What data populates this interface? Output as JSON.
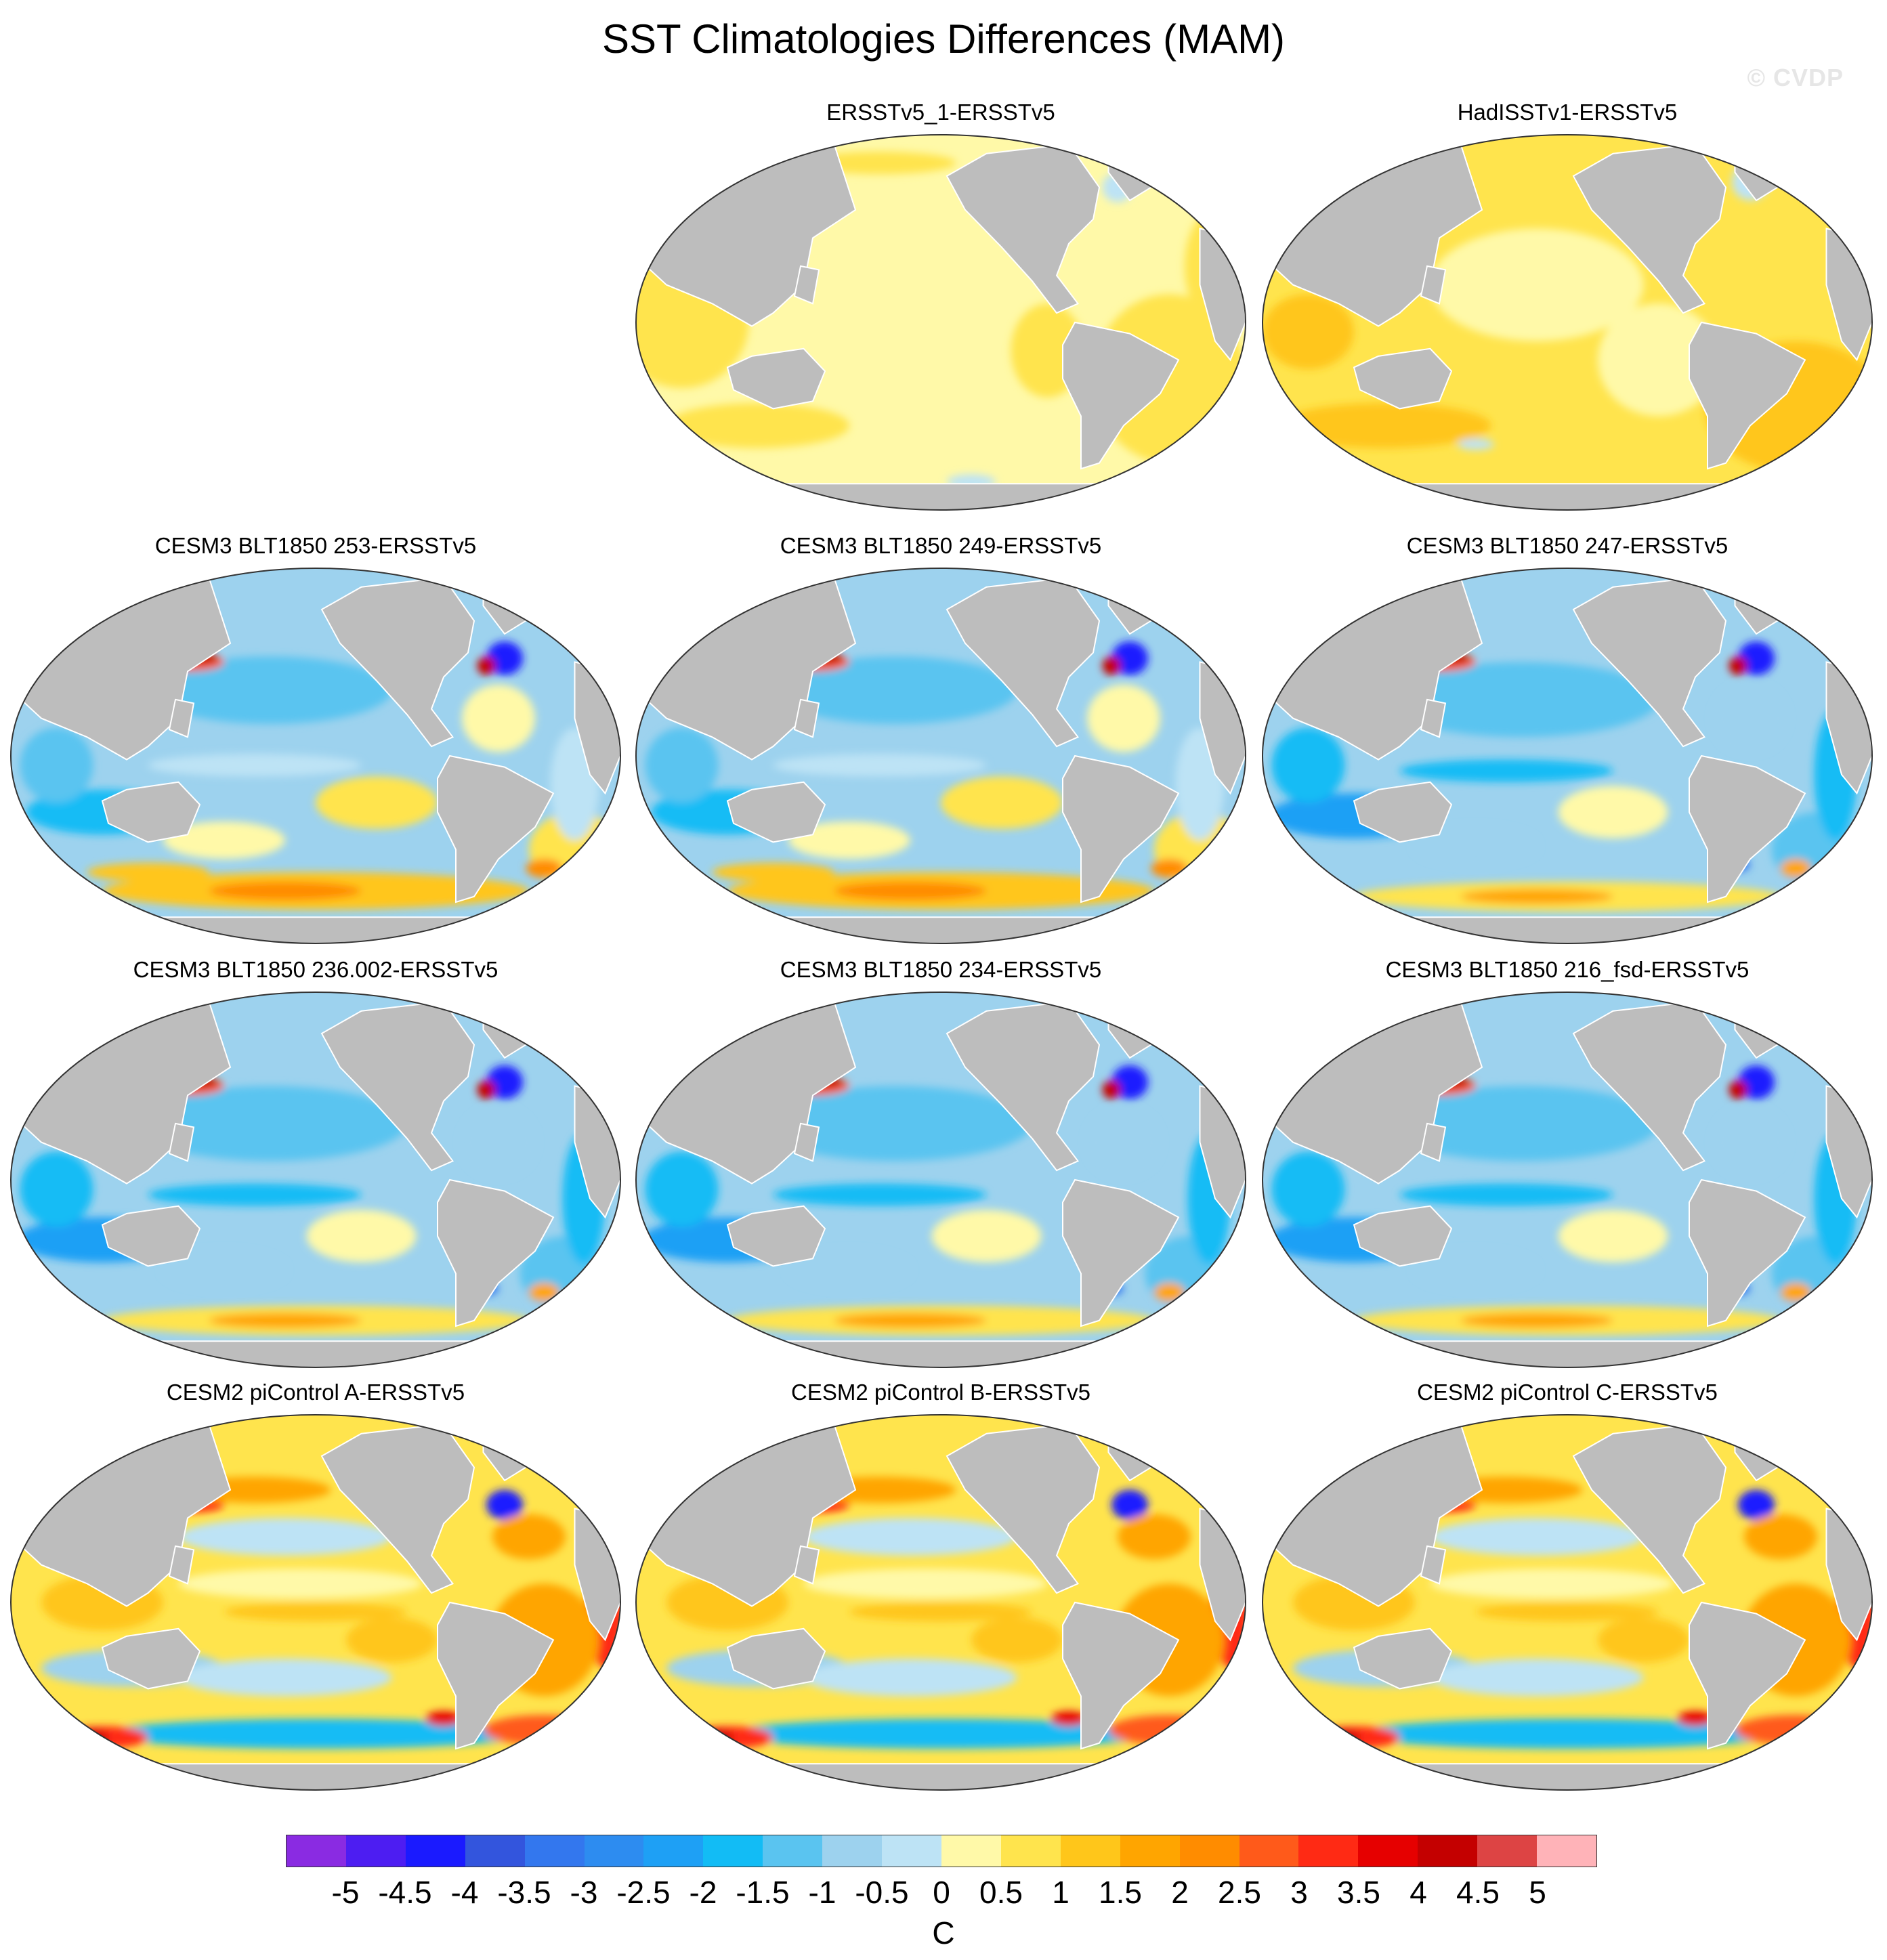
{
  "title": "SST Climatologies Differences (MAM)",
  "watermark": "© CVDP",
  "colors": {
    "land": "#bdbdbd",
    "coastline": "#ffffff",
    "outline": "#333333"
  },
  "panels": [
    {
      "title": "ERSSTv5_1-ERSSTv5",
      "pattern": "obs-small",
      "icon": "globe-map"
    },
    {
      "title": "HadISSTv1-ERSSTv5",
      "pattern": "obs-warm",
      "icon": "globe-map"
    },
    {
      "title": "CESM3 BLT1850 253-ERSSTv5",
      "pattern": "cesm3",
      "icon": "globe-map"
    },
    {
      "title": "CESM3 BLT1850 249-ERSSTv5",
      "pattern": "cesm3",
      "icon": "globe-map"
    },
    {
      "title": "CESM3 BLT1850 247-ERSSTv5",
      "pattern": "cesm3-cool",
      "icon": "globe-map"
    },
    {
      "title": "CESM3 BLT1850 236.002-ERSSTv5",
      "pattern": "cesm3-cool",
      "icon": "globe-map"
    },
    {
      "title": "CESM3 BLT1850 234-ERSSTv5",
      "pattern": "cesm3-cool",
      "icon": "globe-map"
    },
    {
      "title": "CESM3 BLT1850 216_fsd-ERSSTv5",
      "pattern": "cesm3-cool",
      "icon": "globe-map"
    },
    {
      "title": "CESM2 piControl A-ERSSTv5",
      "pattern": "cesm2",
      "icon": "globe-map"
    },
    {
      "title": "CESM2 piControl B-ERSSTv5",
      "pattern": "cesm2",
      "icon": "globe-map"
    },
    {
      "title": "CESM2 piControl C-ERSSTv5",
      "pattern": "cesm2",
      "icon": "globe-map"
    }
  ],
  "colorbar": {
    "units": "C",
    "labels": [
      "-5",
      "-4.5",
      "-4",
      "-3.5",
      "-3",
      "-2.5",
      "-2",
      "-1.5",
      "-1",
      "-0.5",
      "0",
      "0.5",
      "1",
      "1.5",
      "2",
      "2.5",
      "3",
      "3.5",
      "4",
      "4.5",
      "5"
    ],
    "colors": [
      "#8a2be2",
      "#4d1df2",
      "#1a1aff",
      "#3355dd",
      "#3377ee",
      "#2d8cf0",
      "#1ea0f5",
      "#12bcf5",
      "#5ac4f0",
      "#9dd2ee",
      "#bde3f5",
      "#fff9a8",
      "#ffe44d",
      "#ffc61a",
      "#ffa500",
      "#ff8c00",
      "#ff5a1a",
      "#ff2a14",
      "#e60000",
      "#c40000",
      "#dd4444",
      "#ffb3b8"
    ]
  }
}
